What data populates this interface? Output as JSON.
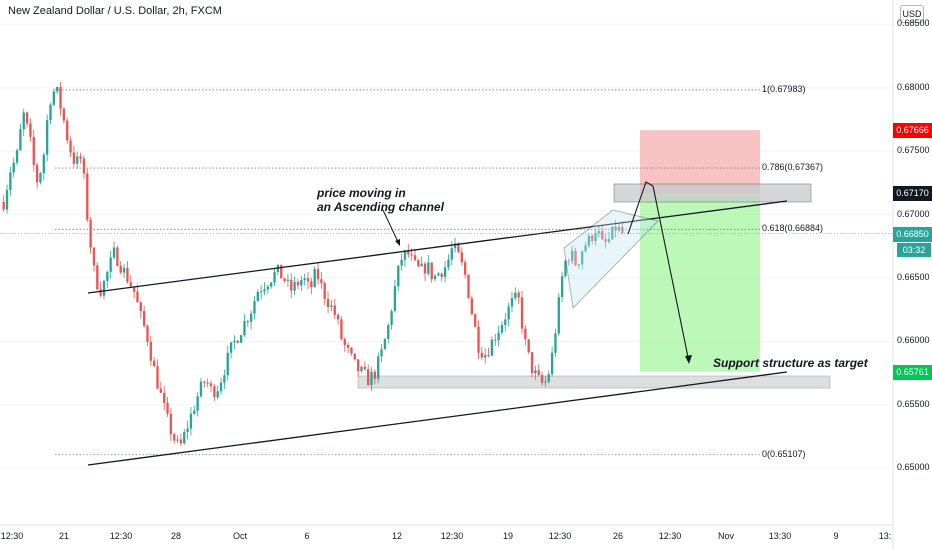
{
  "header": {
    "title": "New Zealand Dollar / U.S. Dollar, 2h, FXCM",
    "currency_button": "USD"
  },
  "chart_data": {
    "type": "candlestick",
    "title": "New Zealand Dollar / U.S. Dollar, 2h, FXCM",
    "symbol": "NZDUSD",
    "timeframe": "2h",
    "ylim": [
      0.6475,
      0.6855
    ],
    "y_ticks": [
      "0.68500",
      "0.68000",
      "0.67500",
      "0.67000",
      "0.66500",
      "0.66000",
      "0.65500",
      "0.65000"
    ],
    "x_ticks": [
      "12:30",
      "21",
      "12:30",
      "28",
      "Oct",
      "6",
      "12",
      "12:30",
      "19",
      "12:30",
      "26",
      "12:30",
      "Nov",
      "13:30",
      "9",
      "13:"
    ],
    "price_tags": [
      {
        "label": "0.67666",
        "value": 0.67666,
        "color": "#ff0000"
      },
      {
        "label": "0.67170",
        "value": 0.6717,
        "color": "#131722"
      },
      {
        "label": "0.66850",
        "value": 0.6685,
        "color": "#26a69a"
      },
      {
        "label": "0.65761",
        "value": 0.65761,
        "color": "#00c853"
      }
    ],
    "countdown": "03:32",
    "fibonacci": [
      {
        "label": "1(0.67983)",
        "value": 0.67983
      },
      {
        "label": "0.786(0.67367)",
        "value": 0.67367
      },
      {
        "label": "0.618(0.66884)",
        "value": 0.66884
      },
      {
        "label": "0(0.65107)",
        "value": 0.65107
      }
    ],
    "annotations": {
      "channel": "price moving in\nan Ascending channel",
      "target": "Support structure as target"
    },
    "position": {
      "entry": 0.6717,
      "stop": 0.67666,
      "target": 0.65761
    },
    "key_prices": [
      0.671,
      0.6735,
      0.6745,
      0.678,
      0.676,
      0.6725,
      0.674,
      0.679,
      0.68,
      0.678,
      0.6755,
      0.674,
      0.6745,
      0.669,
      0.665,
      0.664,
      0.6655,
      0.667,
      0.666,
      0.665,
      0.664,
      0.662,
      0.6605,
      0.658,
      0.656,
      0.654,
      0.6525,
      0.6515,
      0.653,
      0.6545,
      0.656,
      0.657,
      0.656,
      0.6565,
      0.658,
      0.6595,
      0.6605,
      0.6615,
      0.6625,
      0.664,
      0.6645,
      0.665,
      0.6655,
      0.665,
      0.664,
      0.6645,
      0.665,
      0.664,
      0.6655,
      0.664,
      0.663,
      0.662,
      0.66,
      0.659,
      0.658,
      0.6575,
      0.657,
      0.6575,
      0.659,
      0.661,
      0.664,
      0.6665,
      0.667,
      0.666,
      0.6655,
      0.666,
      0.665,
      0.6655,
      0.666,
      0.6675,
      0.6665,
      0.665,
      0.662,
      0.6595,
      0.659,
      0.66,
      0.661,
      0.662,
      0.663,
      0.6635,
      0.66,
      0.658,
      0.657,
      0.6565,
      0.658,
      0.662,
      0.666,
      0.667,
      0.666,
      0.6675,
      0.668,
      0.669,
      0.6675,
      0.668,
      0.669,
      0.6685
    ]
  }
}
